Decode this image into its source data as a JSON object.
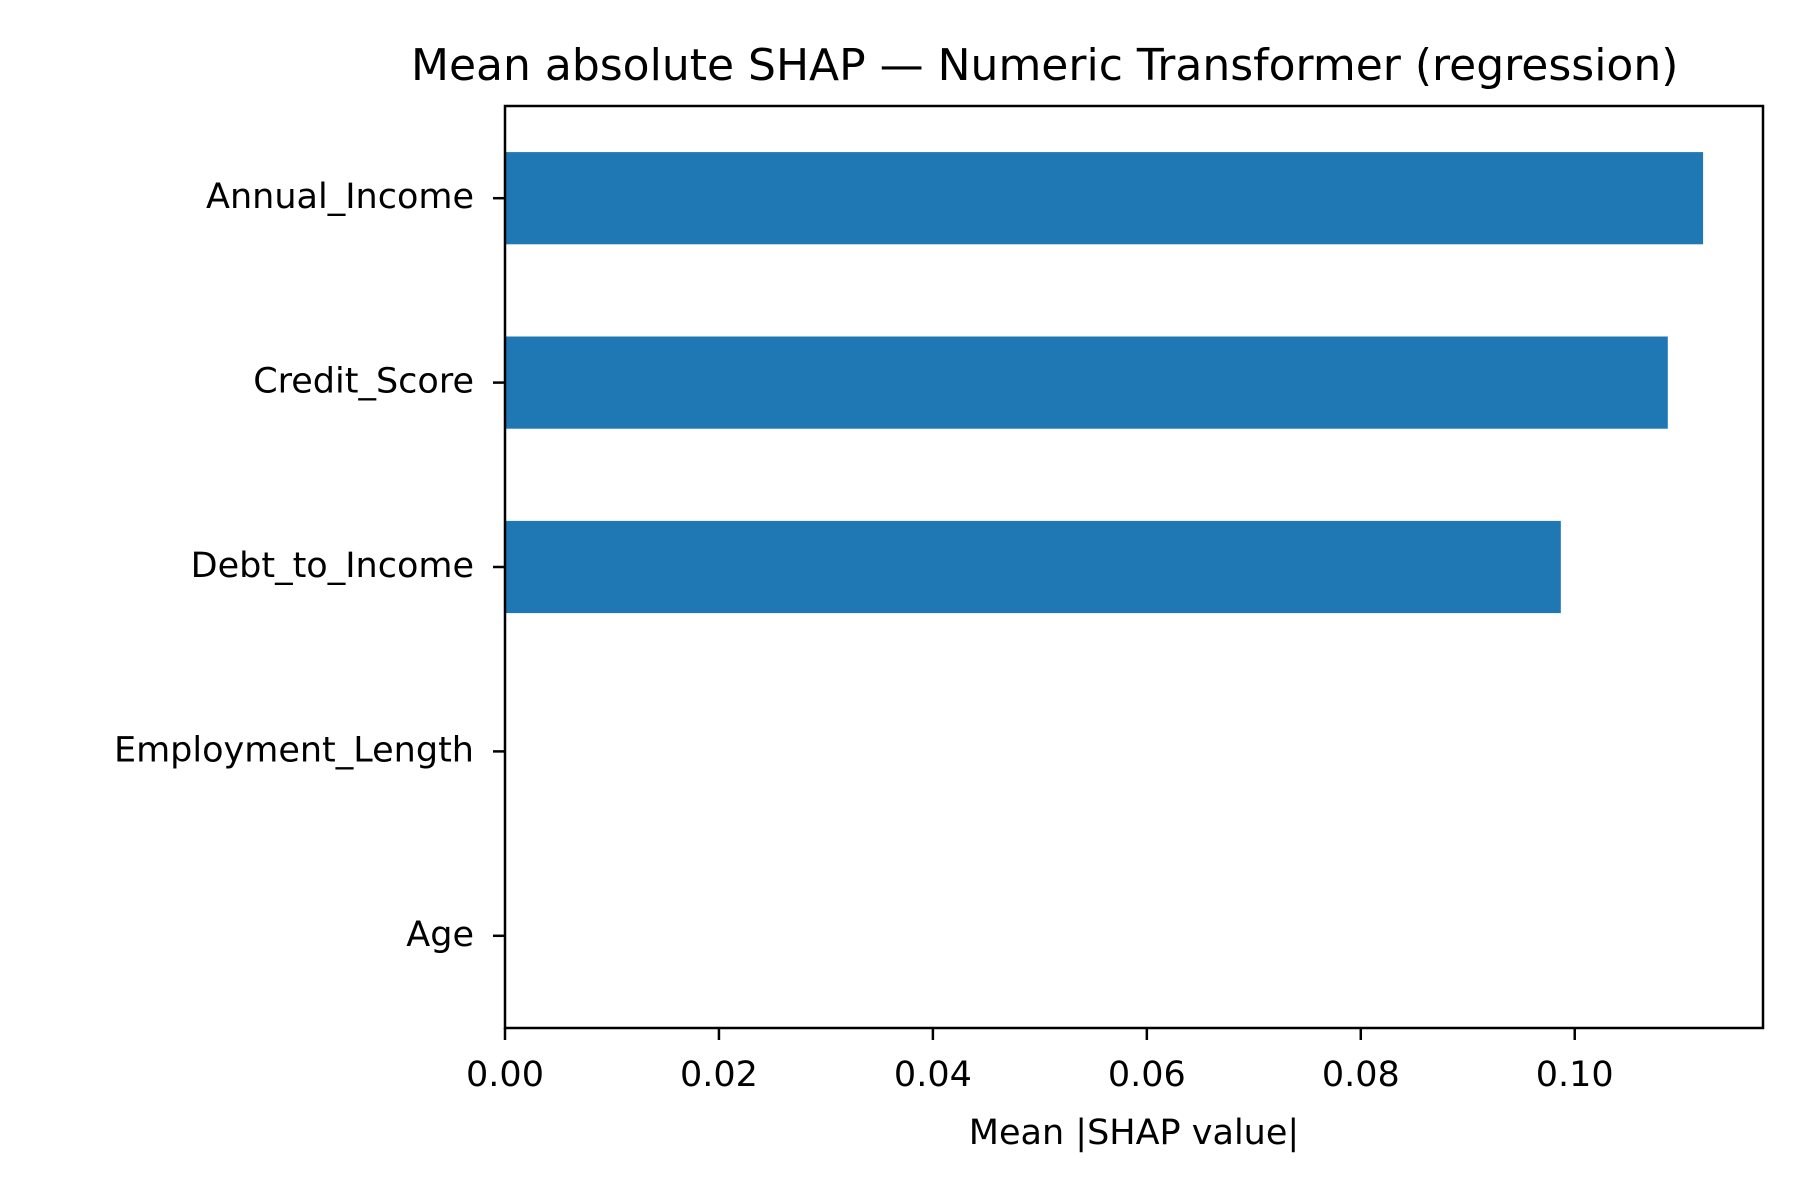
{
  "chart_data": {
    "type": "bar",
    "orientation": "horizontal",
    "title": "Mean absolute SHAP — Numeric Transformer (regression)",
    "xlabel": "Mean |SHAP value|",
    "ylabel": "",
    "categories": [
      "Annual_Income",
      "Credit_Score",
      "Debt_to_Income",
      "Employment_Length",
      "Age"
    ],
    "values": [
      0.112,
      0.1087,
      0.0987,
      0.0,
      0.0
    ],
    "xlim": [
      0,
      0.1176
    ],
    "xticks": [
      0.0,
      0.02,
      0.04,
      0.06,
      0.08,
      0.1
    ],
    "xtick_labels": [
      "0.00",
      "0.02",
      "0.04",
      "0.06",
      "0.08",
      "0.10"
    ],
    "bar_color": "#1f77b4",
    "grid": false,
    "legend": "none"
  }
}
